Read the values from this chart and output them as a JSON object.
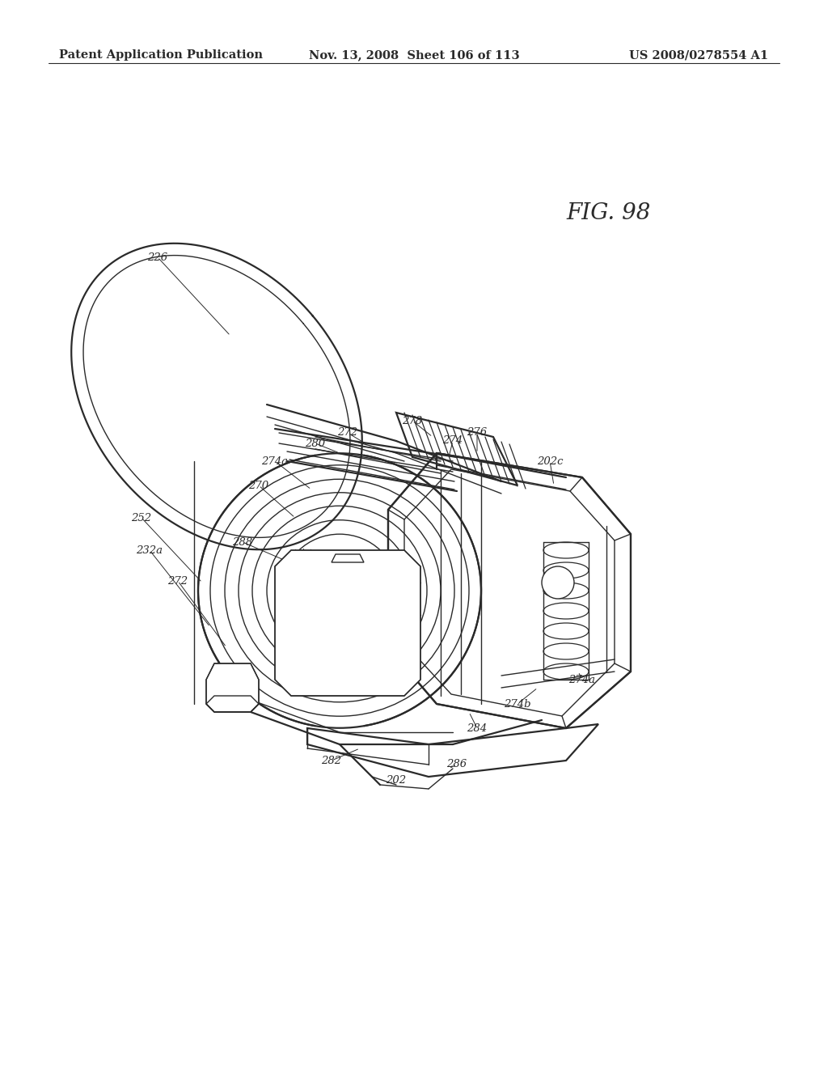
{
  "header_left": "Patent Application Publication",
  "header_center": "Nov. 13, 2008  Sheet 106 of 113",
  "header_right": "US 2008/0278554 A1",
  "figure_label": "FIG. 98",
  "background_color": "#ffffff",
  "line_color": "#2a2a2a",
  "text_color": "#2a2a2a",
  "header_fontsize": 10.5,
  "figure_label_fontsize": 20,
  "label_fontsize": 9.5
}
